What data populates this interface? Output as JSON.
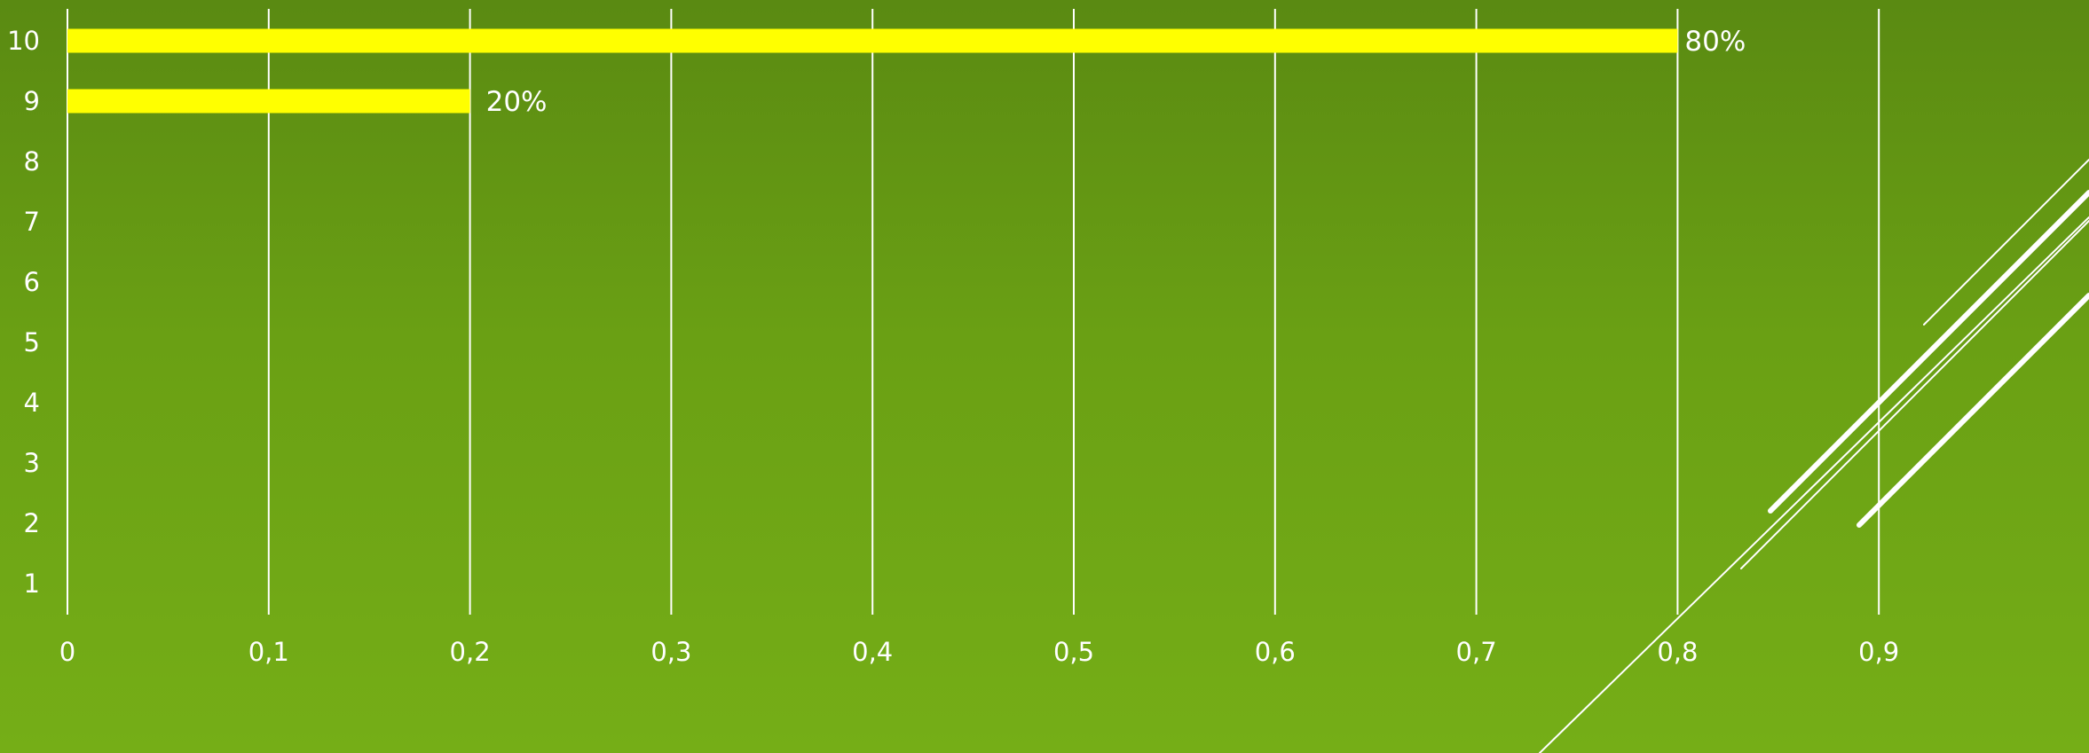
{
  "chart_data": {
    "type": "bar",
    "orientation": "horizontal",
    "categories": [
      "1",
      "2",
      "3",
      "4",
      "5",
      "6",
      "7",
      "8",
      "9",
      "10"
    ],
    "values": [
      null,
      null,
      null,
      null,
      null,
      null,
      null,
      null,
      0.2,
      0.8
    ],
    "data_labels": [
      "",
      "",
      "",
      "",
      "",
      "",
      "",
      "",
      "20%",
      "80%"
    ],
    "x_ticks": [
      "0",
      "0,1",
      "0,2",
      "0,3",
      "0,4",
      "0,5",
      "0,6",
      "0,7",
      "0,8",
      "0,9"
    ],
    "xlim": [
      0,
      0.9
    ],
    "title": "",
    "xlabel": "",
    "ylabel": "",
    "grid": "vertical",
    "legend": "none",
    "colors": {
      "bar": "#ffff00",
      "grid": "#ffffff",
      "text": "#ffffff",
      "background_top": "#5a8a12",
      "background_bottom": "#75ae17"
    }
  }
}
